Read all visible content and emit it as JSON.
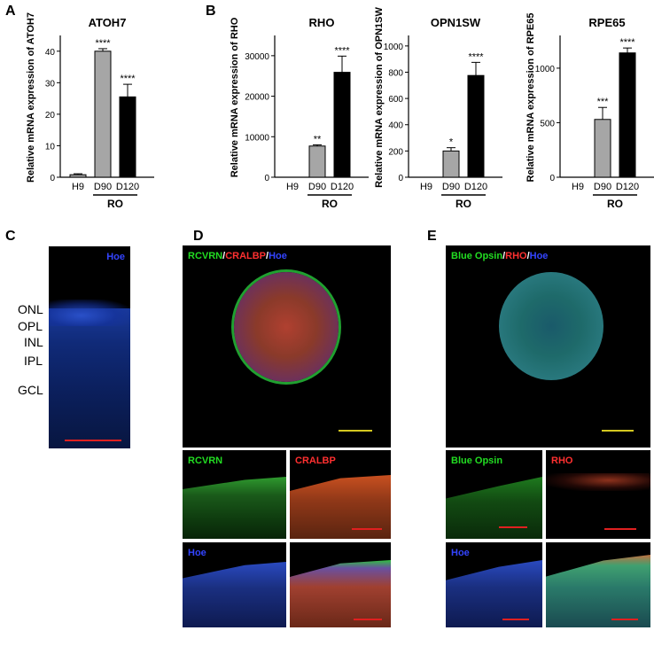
{
  "panels": {
    "A": "A",
    "B": "B",
    "C": "C",
    "D": "D",
    "E": "E"
  },
  "chart_data": [
    {
      "type": "bar",
      "title": "ATOH7",
      "ylabel": "Relative mRNA expression of ATOH7",
      "categories": [
        "H9",
        "D90",
        "D120"
      ],
      "values": [
        0.8,
        40,
        25.5
      ],
      "errors": [
        0.3,
        0.8,
        4
      ],
      "significance": [
        "",
        "****",
        "****"
      ],
      "group_label": "RO",
      "yticks": [
        0,
        10,
        20,
        30,
        40
      ],
      "ylim": [
        0,
        45
      ],
      "colors": [
        "#a6a6a6",
        "#a6a6a6",
        "#000000"
      ]
    },
    {
      "type": "bar",
      "title": "RHO",
      "ylabel": "Relative mRNA expression of RHO",
      "categories": [
        "H9",
        "D90",
        "D120"
      ],
      "values": [
        0,
        7700,
        25900
      ],
      "errors": [
        0,
        300,
        4000
      ],
      "significance": [
        "",
        "**",
        "****"
      ],
      "group_label": "RO",
      "yticks": [
        0,
        10000,
        20000,
        30000
      ],
      "ylim": [
        0,
        35000
      ],
      "colors": [
        "#a6a6a6",
        "#a6a6a6",
        "#000000"
      ]
    },
    {
      "type": "bar",
      "title": "OPN1SW",
      "ylabel": "Relative mRNA expression of OPN1SW",
      "categories": [
        "H9",
        "D90",
        "D120"
      ],
      "values": [
        0,
        200,
        775
      ],
      "errors": [
        0,
        25,
        100
      ],
      "significance": [
        "",
        "*",
        "****"
      ],
      "group_label": "RO",
      "yticks": [
        0,
        200,
        400,
        600,
        800,
        1000
      ],
      "ylim": [
        0,
        1080
      ],
      "colors": [
        "#a6a6a6",
        "#a6a6a6",
        "#000000"
      ]
    },
    {
      "type": "bar",
      "title": "RPE65",
      "ylabel": "Relative mRNA expression of RPE65",
      "categories": [
        "H9",
        "D90",
        "D120"
      ],
      "values": [
        0,
        530,
        1140
      ],
      "errors": [
        0,
        110,
        45
      ],
      "significance": [
        "",
        "***",
        "****"
      ],
      "group_label": "RO",
      "yticks": [
        0,
        500,
        1000
      ],
      "ylim": [
        0,
        1300
      ],
      "colors": [
        "#a6a6a6",
        "#a6a6a6",
        "#000000"
      ]
    }
  ],
  "panelC": {
    "stain": "Hoe",
    "layers": [
      "ONL",
      "OPL",
      "INL",
      "IPL",
      "GCL"
    ]
  },
  "panelD": {
    "main_label": [
      {
        "text": "RCVRN",
        "color": "#22dd22"
      },
      {
        "text": "/",
        "color": "#ffffff"
      },
      {
        "text": "CRALBP",
        "color": "#ff3030"
      },
      {
        "text": "/",
        "color": "#ffffff"
      },
      {
        "text": "Hoe",
        "color": "#3344ff"
      }
    ],
    "sub_labels": [
      "RCVRN",
      "CRALBP",
      "Hoe"
    ]
  },
  "panelE": {
    "main_label": [
      {
        "text": "Blue Opsin",
        "color": "#22dd22"
      },
      {
        "text": "/",
        "color": "#ffffff"
      },
      {
        "text": "RHO",
        "color": "#ff3030"
      },
      {
        "text": "/",
        "color": "#ffffff"
      },
      {
        "text": "Hoe",
        "color": "#3344ff"
      }
    ],
    "sub_labels": [
      "Blue Opsin",
      "RHO",
      "Hoe"
    ]
  }
}
